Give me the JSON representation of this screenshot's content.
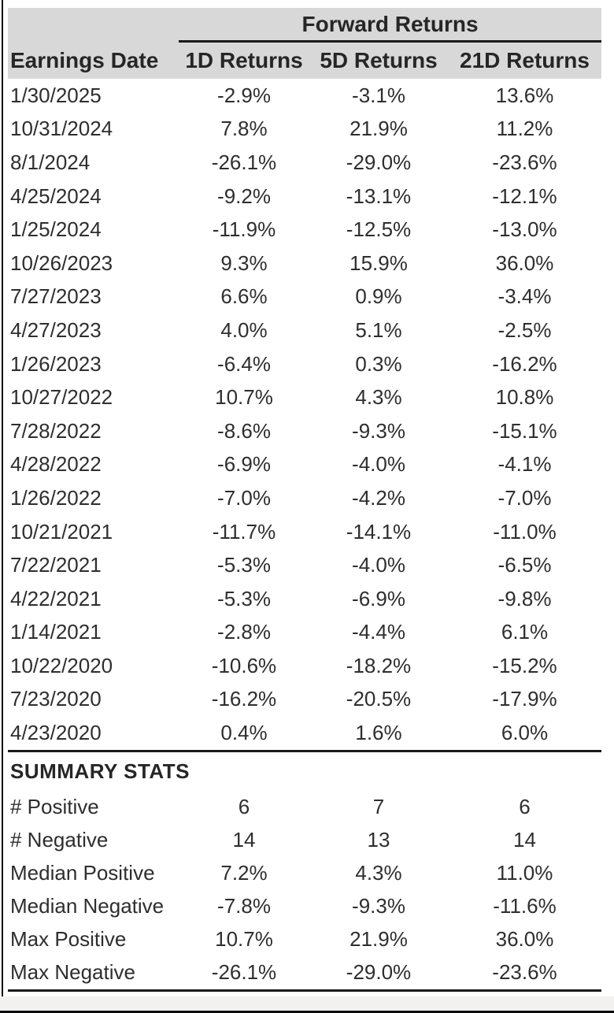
{
  "table": {
    "spanner_title": "Forward Returns",
    "columns": [
      "Earnings Date",
      "1D Returns",
      "5D Returns",
      "21D Returns"
    ],
    "rows": [
      {
        "date": "1/30/2025",
        "r1d": "-2.9%",
        "r5d": "-3.1%",
        "r21d": "13.6%"
      },
      {
        "date": "10/31/2024",
        "r1d": "7.8%",
        "r5d": "21.9%",
        "r21d": "11.2%"
      },
      {
        "date": "8/1/2024",
        "r1d": "-26.1%",
        "r5d": "-29.0%",
        "r21d": "-23.6%"
      },
      {
        "date": "4/25/2024",
        "r1d": "-9.2%",
        "r5d": "-13.1%",
        "r21d": "-12.1%"
      },
      {
        "date": "1/25/2024",
        "r1d": "-11.9%",
        "r5d": "-12.5%",
        "r21d": "-13.0%"
      },
      {
        "date": "10/26/2023",
        "r1d": "9.3%",
        "r5d": "15.9%",
        "r21d": "36.0%"
      },
      {
        "date": "7/27/2023",
        "r1d": "6.6%",
        "r5d": "0.9%",
        "r21d": "-3.4%"
      },
      {
        "date": "4/27/2023",
        "r1d": "4.0%",
        "r5d": "5.1%",
        "r21d": "-2.5%"
      },
      {
        "date": "1/26/2023",
        "r1d": "-6.4%",
        "r5d": "0.3%",
        "r21d": "-16.2%"
      },
      {
        "date": "10/27/2022",
        "r1d": "10.7%",
        "r5d": "4.3%",
        "r21d": "10.8%"
      },
      {
        "date": "7/28/2022",
        "r1d": "-8.6%",
        "r5d": "-9.3%",
        "r21d": "-15.1%"
      },
      {
        "date": "4/28/2022",
        "r1d": "-6.9%",
        "r5d": "-4.0%",
        "r21d": "-4.1%"
      },
      {
        "date": "1/26/2022",
        "r1d": "-7.0%",
        "r5d": "-4.2%",
        "r21d": "-7.0%"
      },
      {
        "date": "10/21/2021",
        "r1d": "-11.7%",
        "r5d": "-14.1%",
        "r21d": "-11.0%"
      },
      {
        "date": "7/22/2021",
        "r1d": "-5.3%",
        "r5d": "-4.0%",
        "r21d": "-6.5%"
      },
      {
        "date": "4/22/2021",
        "r1d": "-5.3%",
        "r5d": "-6.9%",
        "r21d": "-9.8%"
      },
      {
        "date": "1/14/2021",
        "r1d": "-2.8%",
        "r5d": "-4.4%",
        "r21d": "6.1%"
      },
      {
        "date": "10/22/2020",
        "r1d": "-10.6%",
        "r5d": "-18.2%",
        "r21d": "-15.2%"
      },
      {
        "date": "7/23/2020",
        "r1d": "-16.2%",
        "r5d": "-20.5%",
        "r21d": "-17.9%"
      },
      {
        "date": "4/23/2020",
        "r1d": "0.4%",
        "r5d": "1.6%",
        "r21d": "6.0%"
      }
    ],
    "summary": {
      "heading": "SUMMARY STATS",
      "rows": [
        {
          "label": "# Positive",
          "r1d": "6",
          "r5d": "7",
          "r21d": "6"
        },
        {
          "label": "# Negative",
          "r1d": "14",
          "r5d": "13",
          "r21d": "14"
        },
        {
          "label": "Median Positive",
          "r1d": "7.2%",
          "r5d": "4.3%",
          "r21d": "11.0%"
        },
        {
          "label": "Median Negative",
          "r1d": "-7.8%",
          "r5d": "-9.3%",
          "r21d": "-11.6%"
        },
        {
          "label": "Max Positive",
          "r1d": "10.7%",
          "r5d": "21.9%",
          "r21d": "36.0%"
        },
        {
          "label": "Max Negative",
          "r1d": "-26.1%",
          "r5d": "-29.0%",
          "r21d": "-23.6%"
        }
      ]
    }
  },
  "colors": {
    "header_bg": "#d8d8d8",
    "text": "#2e2e2e",
    "line": "#1a1a1a",
    "bottom_strip": "#f2f1ef",
    "edge": "#0a0a0a"
  },
  "chart_data": {
    "type": "table",
    "title": "Forward Returns",
    "columns": [
      "Earnings Date",
      "1D Returns",
      "5D Returns",
      "21D Returns"
    ],
    "units": "percent",
    "rows": [
      [
        "1/30/2025",
        -2.9,
        -3.1,
        13.6
      ],
      [
        "10/31/2024",
        7.8,
        21.9,
        11.2
      ],
      [
        "8/1/2024",
        -26.1,
        -29.0,
        -23.6
      ],
      [
        "4/25/2024",
        -9.2,
        -13.1,
        -12.1
      ],
      [
        "1/25/2024",
        -11.9,
        -12.5,
        -13.0
      ],
      [
        "10/26/2023",
        9.3,
        15.9,
        36.0
      ],
      [
        "7/27/2023",
        6.6,
        0.9,
        -3.4
      ],
      [
        "4/27/2023",
        4.0,
        5.1,
        -2.5
      ],
      [
        "1/26/2023",
        -6.4,
        0.3,
        -16.2
      ],
      [
        "10/27/2022",
        10.7,
        4.3,
        10.8
      ],
      [
        "7/28/2022",
        -8.6,
        -9.3,
        -15.1
      ],
      [
        "4/28/2022",
        -6.9,
        -4.0,
        -4.1
      ],
      [
        "1/26/2022",
        -7.0,
        -4.2,
        -7.0
      ],
      [
        "10/21/2021",
        -11.7,
        -14.1,
        -11.0
      ],
      [
        "7/22/2021",
        -5.3,
        -4.0,
        -6.5
      ],
      [
        "4/22/2021",
        -5.3,
        -6.9,
        -9.8
      ],
      [
        "1/14/2021",
        -2.8,
        -4.4,
        6.1
      ],
      [
        "10/22/2020",
        -10.6,
        -18.2,
        -15.2
      ],
      [
        "7/23/2020",
        -16.2,
        -20.5,
        -17.9
      ],
      [
        "4/23/2020",
        0.4,
        1.6,
        6.0
      ]
    ],
    "summary_rows": [
      [
        "# Positive",
        6,
        7,
        6
      ],
      [
        "# Negative",
        14,
        13,
        14
      ],
      [
        "Median Positive",
        7.2,
        4.3,
        11.0
      ],
      [
        "Median Negative",
        -7.8,
        -9.3,
        -11.6
      ],
      [
        "Max Positive",
        10.7,
        21.9,
        36.0
      ],
      [
        "Max Negative",
        -26.1,
        -29.0,
        -23.6
      ]
    ]
  }
}
